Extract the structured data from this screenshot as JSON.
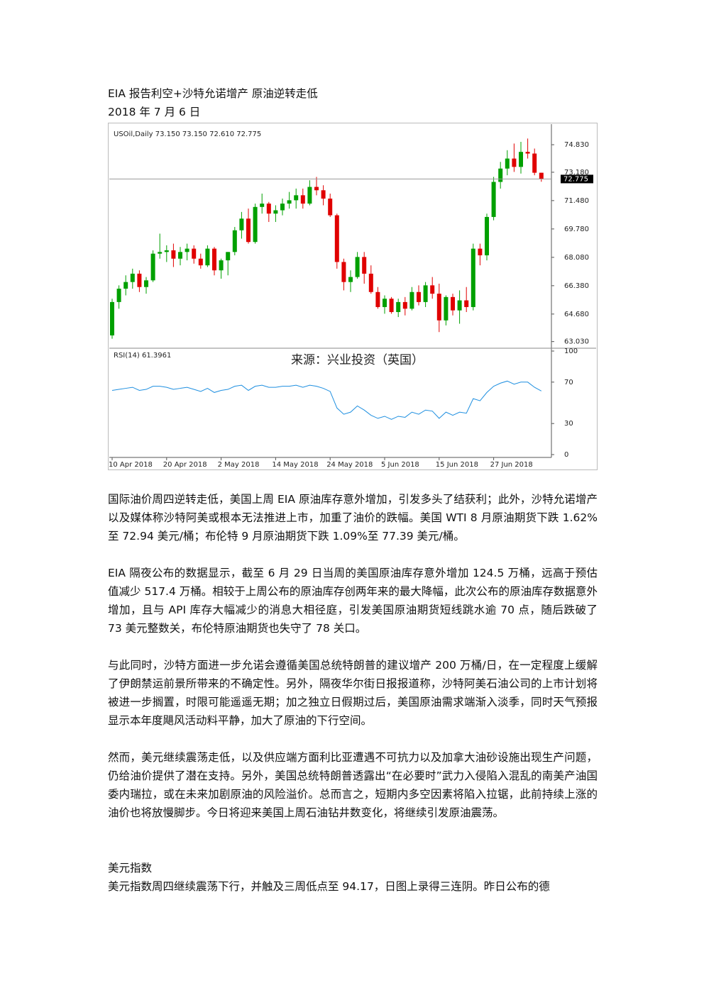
{
  "header": {
    "title": "EIA 报告利空+沙特允诺增产  原油逆转走低",
    "date": "2018 年 7 月 6 日"
  },
  "chart_data": {
    "type": "candlestick",
    "title": "USOil,Daily  73.150 73.150 72.610 72.775",
    "source": "来源：兴业投资（英国）",
    "categories": [
      "10 Apr 2018",
      null,
      null,
      null,
      null,
      null,
      null,
      null,
      "20 Apr 2018",
      null,
      null,
      null,
      null,
      null,
      null,
      null,
      "2 May 2018",
      null,
      null,
      null,
      null,
      null,
      null,
      null,
      "14 May 2018",
      null,
      null,
      null,
      null,
      null,
      null,
      null,
      "24 May 2018",
      null,
      null,
      null,
      null,
      null,
      null,
      null,
      "5 Jun 2018",
      null,
      null,
      null,
      null,
      null,
      null,
      null,
      "15 Jun 2018",
      null,
      null,
      null,
      null,
      null,
      null,
      null,
      "27 Jun 2018",
      null,
      null,
      null,
      null,
      null,
      null,
      null
    ],
    "open": [
      63.4,
      65.4,
      66.2,
      66.6,
      67.1,
      66.3,
      66.7,
      68.3,
      68.4,
      68.5,
      68.0,
      68.4,
      68.6,
      68.0,
      67.6,
      68.6,
      67.3,
      67.9,
      68.4,
      69.7,
      70.4,
      69.0,
      71.1,
      71.3,
      70.7,
      70.9,
      71.3,
      71.5,
      71.8,
      71.3,
      72.3,
      72.1,
      71.6,
      70.6,
      67.8,
      66.6,
      66.9,
      68.1,
      67.1,
      66.0,
      65.1,
      65.6,
      64.8,
      65.4,
      65.0,
      66.0,
      65.4,
      66.4,
      65.9,
      64.3,
      65.7,
      64.9,
      65.5,
      65.1,
      68.6,
      68.2,
      70.5,
      72.6,
      73.4,
      74.0,
      73.5,
      74.4,
      74.3,
      73.15
    ],
    "high": [
      65.6,
      66.4,
      67.0,
      67.4,
      67.3,
      66.9,
      68.5,
      69.5,
      68.8,
      68.9,
      68.7,
      68.9,
      68.8,
      68.3,
      68.8,
      68.7,
      68.0,
      68.4,
      69.9,
      70.8,
      71.0,
      71.3,
      71.9,
      71.4,
      71.2,
      71.6,
      72.0,
      72.2,
      72.2,
      72.7,
      72.9,
      72.4,
      71.9,
      70.7,
      68.0,
      67.3,
      68.4,
      68.4,
      67.6,
      66.3,
      65.8,
      65.7,
      65.6,
      65.7,
      66.3,
      66.4,
      66.6,
      66.9,
      66.5,
      65.8,
      65.9,
      66.1,
      66.3,
      68.9,
      68.9,
      70.7,
      72.9,
      73.8,
      74.5,
      74.9,
      75.0,
      75.2,
      74.6,
      73.15
    ],
    "low": [
      63.2,
      65.0,
      65.8,
      66.2,
      66.0,
      65.9,
      66.6,
      68.0,
      67.8,
      67.5,
      67.6,
      67.9,
      67.7,
      67.4,
      67.5,
      67.0,
      66.8,
      67.0,
      68.2,
      69.2,
      68.9,
      68.9,
      70.7,
      70.2,
      70.2,
      70.6,
      71.0,
      71.0,
      71.0,
      71.2,
      71.8,
      71.2,
      70.5,
      67.4,
      66.1,
      66.0,
      66.8,
      66.5,
      65.9,
      65.0,
      64.7,
      64.7,
      64.5,
      64.6,
      64.9,
      65.2,
      65.1,
      65.6,
      63.6,
      64.0,
      64.6,
      64.1,
      64.8,
      64.9,
      67.6,
      67.9,
      70.3,
      72.2,
      73.0,
      73.2,
      73.1,
      74.0,
      73.0,
      72.61
    ],
    "close": [
      65.4,
      66.2,
      66.6,
      67.1,
      66.3,
      66.7,
      68.3,
      68.4,
      68.5,
      68.0,
      68.4,
      68.6,
      68.0,
      67.6,
      68.6,
      67.3,
      67.9,
      68.4,
      69.7,
      70.4,
      69.0,
      71.1,
      71.3,
      70.7,
      70.9,
      71.3,
      71.5,
      71.8,
      71.3,
      72.3,
      72.1,
      71.6,
      70.6,
      67.8,
      66.6,
      66.9,
      68.1,
      67.1,
      66.0,
      65.1,
      65.6,
      64.8,
      65.4,
      65.0,
      66.0,
      65.4,
      66.4,
      65.9,
      64.3,
      65.7,
      64.9,
      65.5,
      65.1,
      68.6,
      68.2,
      70.5,
      72.6,
      73.4,
      74.0,
      73.5,
      74.4,
      74.3,
      73.15,
      72.775
    ],
    "up_color": "#00a000",
    "down_color": "#e00000",
    "last_price": {
      "value": 72.775,
      "label": "72.775"
    },
    "ylim": [
      62.76,
      75.98
    ],
    "yticks": [
      {
        "value": 74.83,
        "label": "74.830"
      },
      {
        "value": 73.18,
        "label": "73.180"
      },
      {
        "value": 71.48,
        "label": "71.480"
      },
      {
        "value": 69.78,
        "label": "69.780"
      },
      {
        "value": 68.08,
        "label": "68.080"
      },
      {
        "value": 66.38,
        "label": "66.380"
      },
      {
        "value": 64.68,
        "label": "64.680"
      },
      {
        "value": 63.03,
        "label": "63.030"
      }
    ],
    "rsi": {
      "label": "RSI(14) 61.3961",
      "color": "#1e8fe0",
      "ylim": [
        0,
        100
      ],
      "yticks": [
        100,
        70,
        30,
        0
      ],
      "values": [
        62,
        63,
        64,
        65,
        62,
        63,
        66,
        66,
        65,
        63,
        64,
        65,
        63,
        61,
        64,
        60,
        62,
        63,
        66,
        67,
        62,
        66,
        67,
        65,
        65,
        66,
        66,
        67,
        65,
        67,
        66,
        64,
        61,
        45,
        39,
        41,
        47,
        43,
        38,
        35,
        37,
        34,
        37,
        36,
        41,
        39,
        43,
        42,
        35,
        41,
        38,
        41,
        40,
        54,
        52,
        60,
        66,
        69,
        71,
        68,
        70,
        70,
        65,
        61.3961
      ]
    }
  },
  "paragraphs": [
    "国际油价周四逆转走低，美国上周 EIA 原油库存意外增加，引发多头了结获利；此外，沙特允诺增产以及媒体称沙特阿美或根本无法推进上市，加重了油价的跌幅。美国 WTI 8 月原油期货下跌 1.62%至 72.94 美元/桶；布伦特 9 月原油期货下跌 1.09%至 77.39 美元/桶。",
    "EIA 隔夜公布的数据显示，截至 6 月 29 日当周的美国原油库存意外增加 124.5 万桶，远高于预估值减少 517.4 万桶。相较于上周公布的原油库存创两年来的最大降幅，此次公布的原油库存数据意外增加，且与 API 库存大幅减少的消息大相径庭，引发美国原油期货短线跳水逾 70 点，随后跌破了 73 美元整数关，布伦特原油期货也失守了 78 关口。",
    "与此同时，沙特方面进一步允诺会遵循美国总统特朗普的建议增产 200 万桶/日，在一定程度上缓解了伊朗禁运前景所带来的不确定性。另外，隔夜华尔街日报报道称，沙特阿美石油公司的上市计划将被进一步搁置，时限可能遥遥无期；加之独立日假期过后，美国原油需求端渐入淡季，同时天气预报显示本年度飓风活动料平静，加大了原油的下行空间。",
    "然而，美元继续震荡走低，以及供应端方面利比亚遭遇不可抗力以及加拿大油砂设施出现生产问题，仍给油价提供了潜在支持。另外，美国总统特朗普透露出“在必要时”武力入侵陷入混乱的南美产油国委内瑞拉，或在未来加剧原油的风险溢价。总而言之，短期内多空因素将陷入拉锯，此前持续上涨的油价也将放慢脚步。今日将迎来美国上周石油钻井数变化，将继续引发原油震荡。"
  ],
  "section": {
    "heading": "美元指数",
    "text": "美元指数周四继续震荡下行，并触及三周低点至 94.17，日图上录得三连阴。昨日公布的德"
  }
}
